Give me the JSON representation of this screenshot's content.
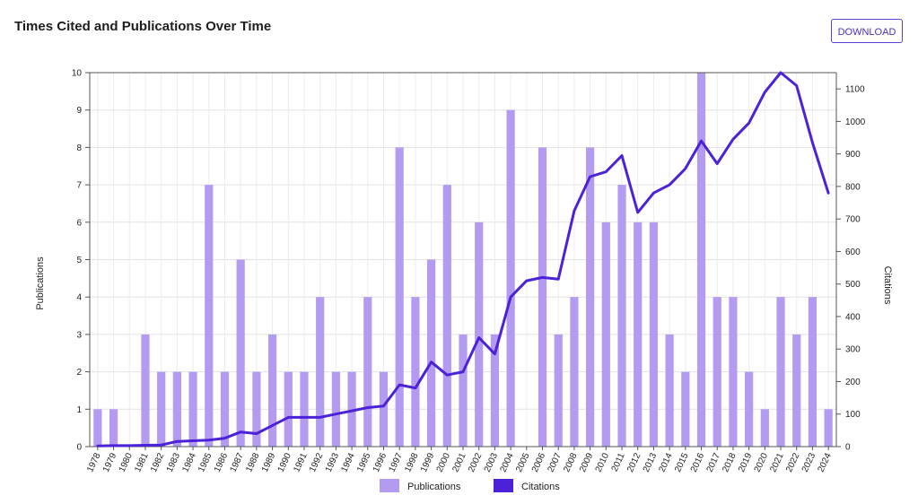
{
  "page": {
    "title": "Times Cited and Publications Over Time",
    "download_label": "DOWNLOAD"
  },
  "colors": {
    "bar": "#b39bf2",
    "line": "#4b22d8",
    "accent": "#5b3fd6"
  },
  "chart_data": {
    "type": "bar+line",
    "title": "Times Cited and Publications Over Time",
    "categories": [
      "1978",
      "1979",
      "1980",
      "1981",
      "1982",
      "1983",
      "1984",
      "1985",
      "1986",
      "1987",
      "1988",
      "1989",
      "1990",
      "1991",
      "1992",
      "1993",
      "1994",
      "1995",
      "1996",
      "1997",
      "1998",
      "1999",
      "2000",
      "2001",
      "2002",
      "2003",
      "2004",
      "2005",
      "2006",
      "2007",
      "2008",
      "2009",
      "2010",
      "2011",
      "2012",
      "2013",
      "2014",
      "2015",
      "2016",
      "2017",
      "2018",
      "2019",
      "2020",
      "2021",
      "2022",
      "2023",
      "2024"
    ],
    "series": [
      {
        "name": "Publications",
        "type": "bar",
        "axis": "left",
        "values": [
          1,
          1,
          0,
          3,
          2,
          2,
          2,
          7,
          2,
          5,
          2,
          3,
          2,
          2,
          4,
          2,
          2,
          4,
          2,
          8,
          4,
          5,
          7,
          3,
          6,
          3,
          9,
          0,
          8,
          3,
          4,
          8,
          6,
          7,
          6,
          6,
          3,
          2,
          10,
          4,
          4,
          2,
          1,
          4,
          3,
          4,
          1
        ]
      },
      {
        "name": "Citations",
        "type": "line",
        "axis": "right",
        "values": [
          2,
          3,
          3,
          4,
          5,
          16,
          18,
          20,
          26,
          45,
          40,
          65,
          90,
          90,
          90,
          100,
          110,
          120,
          125,
          190,
          180,
          260,
          220,
          230,
          335,
          285,
          460,
          510,
          520,
          515,
          725,
          830,
          845,
          895,
          720,
          780,
          805,
          855,
          940,
          870,
          945,
          995,
          1090,
          1150,
          1110,
          935,
          780
        ]
      }
    ],
    "ylabel": "Publications",
    "y2label": "Citations",
    "ylim": [
      0,
      10
    ],
    "y2lim": [
      0,
      1150
    ],
    "yticks": [
      0,
      1,
      2,
      3,
      4,
      5,
      6,
      7,
      8,
      9,
      10
    ],
    "y2ticks": [
      0,
      100,
      200,
      300,
      400,
      500,
      600,
      700,
      800,
      900,
      1000,
      1100
    ],
    "grid": true,
    "legend": "bottom-center"
  }
}
